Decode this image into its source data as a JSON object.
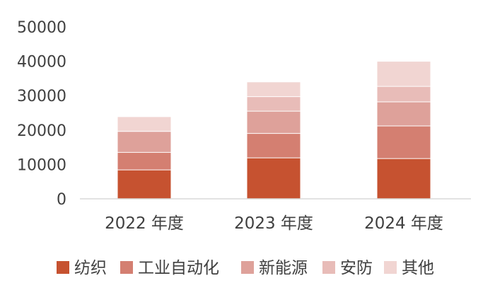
{
  "chart_data": {
    "type": "bar",
    "stacked": true,
    "categories": [
      "2022 年度",
      "2023 年度",
      "2024 年度"
    ],
    "series": [
      {
        "name": "纺织",
        "color": "#c65230",
        "values": [
          8400,
          11900,
          11700
        ]
      },
      {
        "name": "工业自动化",
        "color": "#d47f71",
        "values": [
          5100,
          7100,
          9500
        ]
      },
      {
        "name": "新能源",
        "color": "#dea19a",
        "values": [
          6100,
          6500,
          7000
        ]
      },
      {
        "name": "安防",
        "color": "#e8bcb8",
        "values": [
          0,
          4200,
          4500
        ]
      },
      {
        "name": "其他",
        "color": "#f1d5d2",
        "values": [
          4300,
          4300,
          7300
        ]
      }
    ],
    "yticks": [
      0,
      10000,
      20000,
      30000,
      40000,
      50000
    ],
    "ylim": [
      0,
      50000
    ],
    "grid": false,
    "legend_position": "bottom"
  }
}
